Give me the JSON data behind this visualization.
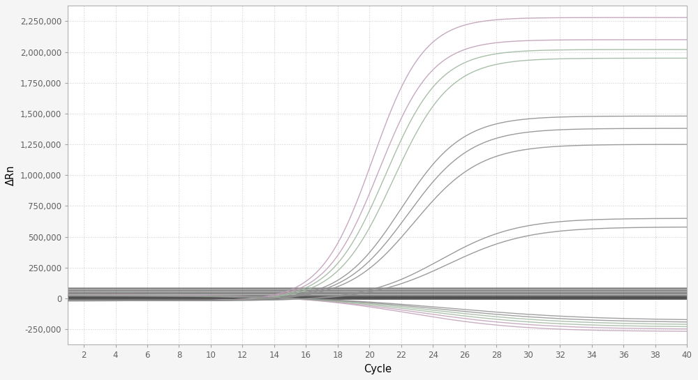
{
  "title": "",
  "xlabel": "Cycle",
  "ylabel": "ΔRn",
  "xlim": [
    1,
    40
  ],
  "ylim": [
    -375000,
    2375000
  ],
  "xticks": [
    2,
    4,
    6,
    8,
    10,
    12,
    14,
    16,
    18,
    20,
    22,
    24,
    26,
    28,
    30,
    32,
    34,
    36,
    38,
    40
  ],
  "yticks": [
    -250000,
    0,
    250000,
    500000,
    750000,
    1000000,
    1250000,
    1500000,
    1750000,
    2000000,
    2250000
  ],
  "background_color": "#f5f5f5",
  "plot_bg_color": "#ffffff",
  "grid_color": "#c8c8c8",
  "curves_up": [
    {
      "color": "#c0a0b8",
      "plateau": 2280000,
      "midpoint": 20.2,
      "steepness": 0.62,
      "baseline": -20000
    },
    {
      "color": "#c0a0b8",
      "plateau": 2100000,
      "midpoint": 20.6,
      "steepness": 0.6,
      "baseline": -20000
    },
    {
      "color": "#a0b8a0",
      "plateau": 2020000,
      "midpoint": 21.0,
      "steepness": 0.58,
      "baseline": -20000
    },
    {
      "color": "#a0b8a0",
      "plateau": 1950000,
      "midpoint": 21.5,
      "steepness": 0.56,
      "baseline": -20000
    },
    {
      "color": "#909090",
      "plateau": 1480000,
      "midpoint": 22.0,
      "steepness": 0.52,
      "baseline": -20000
    },
    {
      "color": "#909090",
      "plateau": 1380000,
      "midpoint": 22.4,
      "steepness": 0.5,
      "baseline": -20000
    },
    {
      "color": "#909090",
      "plateau": 1250000,
      "midpoint": 22.8,
      "steepness": 0.48,
      "baseline": -20000
    },
    {
      "color": "#909090",
      "plateau": 650000,
      "midpoint": 24.5,
      "steepness": 0.42,
      "baseline": -20000
    },
    {
      "color": "#909090",
      "plateau": 580000,
      "midpoint": 25.0,
      "steepness": 0.4,
      "baseline": -20000
    }
  ],
  "curves_down": [
    {
      "color": "#c0a0b8",
      "nadir": -300000,
      "midpoint": 22.5,
      "steepness": 0.28,
      "baseline": 30000
    },
    {
      "color": "#c0a0b8",
      "nadir": -280000,
      "midpoint": 23.0,
      "steepness": 0.26,
      "baseline": 28000
    },
    {
      "color": "#a0b8a0",
      "nadir": -260000,
      "midpoint": 23.5,
      "steepness": 0.25,
      "baseline": 26000
    },
    {
      "color": "#a0b8a0",
      "nadir": -240000,
      "midpoint": 24.0,
      "steepness": 0.24,
      "baseline": 24000
    },
    {
      "color": "#909090",
      "nadir": -220000,
      "midpoint": 24.5,
      "steepness": 0.23,
      "baseline": 22000
    },
    {
      "color": "#909090",
      "nadir": -200000,
      "midpoint": 25.0,
      "steepness": 0.22,
      "baseline": 20000
    }
  ],
  "flat_band_min": -8000,
  "flat_band_max": 90000,
  "flat_band_n": 30,
  "flat_color": "#404040"
}
